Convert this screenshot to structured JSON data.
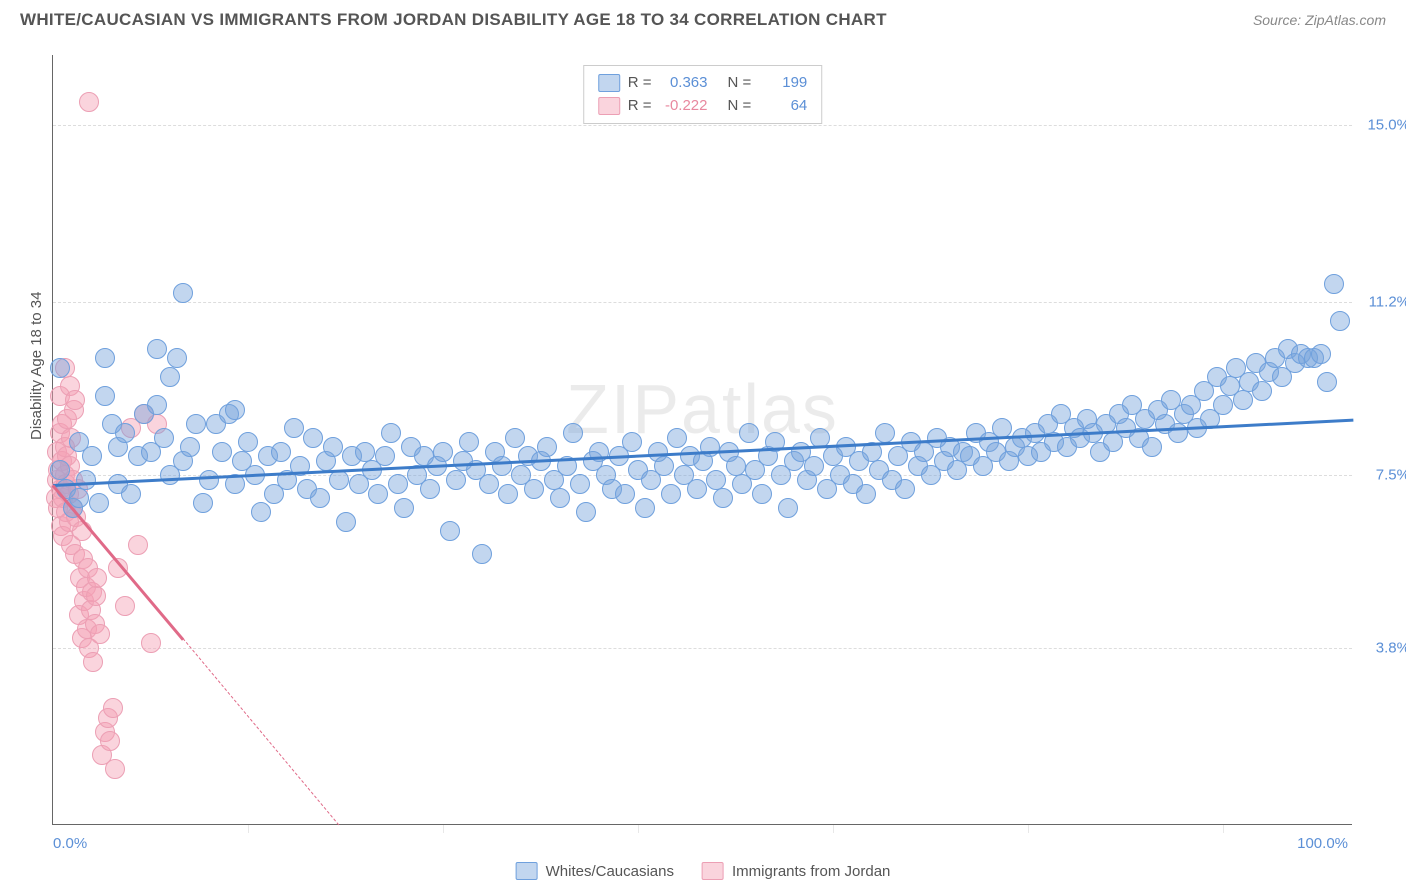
{
  "title": "WHITE/CAUCASIAN VS IMMIGRANTS FROM JORDAN DISABILITY AGE 18 TO 34 CORRELATION CHART",
  "source": "Source: ZipAtlas.com",
  "watermark": "ZIPatlas",
  "y_axis_title": "Disability Age 18 to 34",
  "chart": {
    "type": "scatter",
    "xlim": [
      0,
      100
    ],
    "ylim": [
      0,
      16.5
    ],
    "y_ticks": [
      {
        "v": 3.8,
        "label": "3.8%"
      },
      {
        "v": 7.5,
        "label": "7.5%"
      },
      {
        "v": 11.2,
        "label": "11.2%"
      },
      {
        "v": 15.0,
        "label": "15.0%"
      }
    ],
    "x_ticks_minor": [
      15,
      30,
      45,
      60,
      75,
      90
    ],
    "x_labels": [
      {
        "v": 0,
        "label": "0.0%",
        "align": "left"
      },
      {
        "v": 100,
        "label": "100.0%",
        "align": "right"
      }
    ],
    "background_color": "#ffffff",
    "grid_color": "#dddddd"
  },
  "series": {
    "blue": {
      "label": "Whites/Caucasians",
      "fill": "rgba(120,163,219,0.45)",
      "stroke": "#6fa0dd",
      "marker_r": 10,
      "trend_color": "#3d7cc9",
      "R": "0.363",
      "N": "199",
      "trend": {
        "x1": 0,
        "y1": 7.3,
        "x2": 100,
        "y2": 8.7
      },
      "points": [
        [
          0.5,
          7.6
        ],
        [
          0.5,
          9.8
        ],
        [
          1,
          7.2
        ],
        [
          1.5,
          6.8
        ],
        [
          2,
          7.0
        ],
        [
          2,
          8.2
        ],
        [
          2.5,
          7.4
        ],
        [
          3,
          7.9
        ],
        [
          3.5,
          6.9
        ],
        [
          4,
          9.2
        ],
        [
          4,
          10.0
        ],
        [
          4.5,
          8.6
        ],
        [
          5,
          7.3
        ],
        [
          5,
          8.1
        ],
        [
          5.5,
          8.4
        ],
        [
          6,
          7.1
        ],
        [
          6.5,
          7.9
        ],
        [
          7,
          8.8
        ],
        [
          7.5,
          8.0
        ],
        [
          8,
          9.0
        ],
        [
          8,
          10.2
        ],
        [
          8.5,
          8.3
        ],
        [
          9,
          9.6
        ],
        [
          9,
          7.5
        ],
        [
          9.5,
          10.0
        ],
        [
          10,
          7.8
        ],
        [
          10,
          11.4
        ],
        [
          10.5,
          8.1
        ],
        [
          11,
          8.6
        ],
        [
          11.5,
          6.9
        ],
        [
          12,
          7.4
        ],
        [
          12.5,
          8.6
        ],
        [
          13,
          8.0
        ],
        [
          13.5,
          8.8
        ],
        [
          14,
          7.3
        ],
        [
          14,
          8.9
        ],
        [
          14.5,
          7.8
        ],
        [
          15,
          8.2
        ],
        [
          15.5,
          7.5
        ],
        [
          16,
          6.7
        ],
        [
          16.5,
          7.9
        ],
        [
          17,
          7.1
        ],
        [
          17.5,
          8.0
        ],
        [
          18,
          7.4
        ],
        [
          18.5,
          8.5
        ],
        [
          19,
          7.7
        ],
        [
          19.5,
          7.2
        ],
        [
          20,
          8.3
        ],
        [
          20.5,
          7.0
        ],
        [
          21,
          7.8
        ],
        [
          21.5,
          8.1
        ],
        [
          22,
          7.4
        ],
        [
          22.5,
          6.5
        ],
        [
          23,
          7.9
        ],
        [
          23.5,
          7.3
        ],
        [
          24,
          8.0
        ],
        [
          24.5,
          7.6
        ],
        [
          25,
          7.1
        ],
        [
          25.5,
          7.9
        ],
        [
          26,
          8.4
        ],
        [
          26.5,
          7.3
        ],
        [
          27,
          6.8
        ],
        [
          27.5,
          8.1
        ],
        [
          28,
          7.5
        ],
        [
          28.5,
          7.9
        ],
        [
          29,
          7.2
        ],
        [
          29.5,
          7.7
        ],
        [
          30,
          8.0
        ],
        [
          30.5,
          6.3
        ],
        [
          31,
          7.4
        ],
        [
          31.5,
          7.8
        ],
        [
          32,
          8.2
        ],
        [
          32.5,
          7.6
        ],
        [
          33,
          5.8
        ],
        [
          33.5,
          7.3
        ],
        [
          34,
          8.0
        ],
        [
          34.5,
          7.7
        ],
        [
          35,
          7.1
        ],
        [
          35.5,
          8.3
        ],
        [
          36,
          7.5
        ],
        [
          36.5,
          7.9
        ],
        [
          37,
          7.2
        ],
        [
          37.5,
          7.8
        ],
        [
          38,
          8.1
        ],
        [
          38.5,
          7.4
        ],
        [
          39,
          7.0
        ],
        [
          39.5,
          7.7
        ],
        [
          40,
          8.4
        ],
        [
          40.5,
          7.3
        ],
        [
          41,
          6.7
        ],
        [
          41.5,
          7.8
        ],
        [
          42,
          8.0
        ],
        [
          42.5,
          7.5
        ],
        [
          43,
          7.2
        ],
        [
          43.5,
          7.9
        ],
        [
          44,
          7.1
        ],
        [
          44.5,
          8.2
        ],
        [
          45,
          7.6
        ],
        [
          45.5,
          6.8
        ],
        [
          46,
          7.4
        ],
        [
          46.5,
          8.0
        ],
        [
          47,
          7.7
        ],
        [
          47.5,
          7.1
        ],
        [
          48,
          8.3
        ],
        [
          48.5,
          7.5
        ],
        [
          49,
          7.9
        ],
        [
          49.5,
          7.2
        ],
        [
          50,
          7.8
        ],
        [
          50.5,
          8.1
        ],
        [
          51,
          7.4
        ],
        [
          51.5,
          7.0
        ],
        [
          52,
          8.0
        ],
        [
          52.5,
          7.7
        ],
        [
          53,
          7.3
        ],
        [
          53.5,
          8.4
        ],
        [
          54,
          7.6
        ],
        [
          54.5,
          7.1
        ],
        [
          55,
          7.9
        ],
        [
          55.5,
          8.2
        ],
        [
          56,
          7.5
        ],
        [
          56.5,
          6.8
        ],
        [
          57,
          7.8
        ],
        [
          57.5,
          8.0
        ],
        [
          58,
          7.4
        ],
        [
          58.5,
          7.7
        ],
        [
          59,
          8.3
        ],
        [
          59.5,
          7.2
        ],
        [
          60,
          7.9
        ],
        [
          60.5,
          7.5
        ],
        [
          61,
          8.1
        ],
        [
          61.5,
          7.3
        ],
        [
          62,
          7.8
        ],
        [
          62.5,
          7.1
        ],
        [
          63,
          8.0
        ],
        [
          63.5,
          7.6
        ],
        [
          64,
          8.4
        ],
        [
          64.5,
          7.4
        ],
        [
          65,
          7.9
        ],
        [
          65.5,
          7.2
        ],
        [
          66,
          8.2
        ],
        [
          66.5,
          7.7
        ],
        [
          67,
          8.0
        ],
        [
          67.5,
          7.5
        ],
        [
          68,
          8.3
        ],
        [
          68.5,
          7.8
        ],
        [
          69,
          8.1
        ],
        [
          69.5,
          7.6
        ],
        [
          70,
          8.0
        ],
        [
          70.5,
          7.9
        ],
        [
          71,
          8.4
        ],
        [
          71.5,
          7.7
        ],
        [
          72,
          8.2
        ],
        [
          72.5,
          8.0
        ],
        [
          73,
          8.5
        ],
        [
          73.5,
          7.8
        ],
        [
          74,
          8.1
        ],
        [
          74.5,
          8.3
        ],
        [
          75,
          7.9
        ],
        [
          75.5,
          8.4
        ],
        [
          76,
          8.0
        ],
        [
          76.5,
          8.6
        ],
        [
          77,
          8.2
        ],
        [
          77.5,
          8.8
        ],
        [
          78,
          8.1
        ],
        [
          78.5,
          8.5
        ],
        [
          79,
          8.3
        ],
        [
          79.5,
          8.7
        ],
        [
          80,
          8.4
        ],
        [
          80.5,
          8.0
        ],
        [
          81,
          8.6
        ],
        [
          81.5,
          8.2
        ],
        [
          82,
          8.8
        ],
        [
          82.5,
          8.5
        ],
        [
          83,
          9.0
        ],
        [
          83.5,
          8.3
        ],
        [
          84,
          8.7
        ],
        [
          84.5,
          8.1
        ],
        [
          85,
          8.9
        ],
        [
          85.5,
          8.6
        ],
        [
          86,
          9.1
        ],
        [
          86.5,
          8.4
        ],
        [
          87,
          8.8
        ],
        [
          87.5,
          9.0
        ],
        [
          88,
          8.5
        ],
        [
          88.5,
          9.3
        ],
        [
          89,
          8.7
        ],
        [
          89.5,
          9.6
        ],
        [
          90,
          9.0
        ],
        [
          90.5,
          9.4
        ],
        [
          91,
          9.8
        ],
        [
          91.5,
          9.1
        ],
        [
          92,
          9.5
        ],
        [
          92.5,
          9.9
        ],
        [
          93,
          9.3
        ],
        [
          93.5,
          9.7
        ],
        [
          94,
          10.0
        ],
        [
          94.5,
          9.6
        ],
        [
          95,
          10.2
        ],
        [
          95.5,
          9.9
        ],
        [
          96,
          10.1
        ],
        [
          96.5,
          10.0
        ],
        [
          97,
          10.0
        ],
        [
          97.5,
          10.1
        ],
        [
          98,
          9.5
        ],
        [
          98.5,
          11.6
        ],
        [
          99,
          10.8
        ]
      ]
    },
    "pink": {
      "label": "Immigrants from Jordan",
      "fill": "rgba(244,160,180,0.45)",
      "stroke": "#ec9fb4",
      "marker_r": 10,
      "trend_color": "#e06a88",
      "R": "-0.222",
      "N": "64",
      "trend_solid": {
        "x1": 0,
        "y1": 7.3,
        "x2": 10,
        "y2": 4.0
      },
      "trend_dashed": {
        "x1": 10,
        "y1": 4.0,
        "x2": 22,
        "y2": 0.0
      },
      "points": [
        [
          0.2,
          7.0
        ],
        [
          0.3,
          7.4
        ],
        [
          0.3,
          8.0
        ],
        [
          0.4,
          6.8
        ],
        [
          0.4,
          7.6
        ],
        [
          0.5,
          8.4
        ],
        [
          0.5,
          9.2
        ],
        [
          0.6,
          7.2
        ],
        [
          0.6,
          6.4
        ],
        [
          0.7,
          7.8
        ],
        [
          0.7,
          8.6
        ],
        [
          0.8,
          7.0
        ],
        [
          0.8,
          6.2
        ],
        [
          0.9,
          7.5
        ],
        [
          0.9,
          8.1
        ],
        [
          1.0,
          6.7
        ],
        [
          1.0,
          7.3
        ],
        [
          1.1,
          7.9
        ],
        [
          1.1,
          8.7
        ],
        [
          1.2,
          6.5
        ],
        [
          1.2,
          7.1
        ],
        [
          1.3,
          7.7
        ],
        [
          1.4,
          8.3
        ],
        [
          1.4,
          6.0
        ],
        [
          1.5,
          6.8
        ],
        [
          1.5,
          7.4
        ],
        [
          1.6,
          8.9
        ],
        [
          1.7,
          5.8
        ],
        [
          1.8,
          6.6
        ],
        [
          1.9,
          7.2
        ],
        [
          2.0,
          4.5
        ],
        [
          2.1,
          5.3
        ],
        [
          2.2,
          4.0
        ],
        [
          2.3,
          5.7
        ],
        [
          2.4,
          4.8
        ],
        [
          2.5,
          5.1
        ],
        [
          2.6,
          4.2
        ],
        [
          2.7,
          5.5
        ],
        [
          2.8,
          3.8
        ],
        [
          2.9,
          4.6
        ],
        [
          3.0,
          5.0
        ],
        [
          3.1,
          3.5
        ],
        [
          3.2,
          4.3
        ],
        [
          3.3,
          4.9
        ],
        [
          3.4,
          5.3
        ],
        [
          3.6,
          4.1
        ],
        [
          3.8,
          1.5
        ],
        [
          4.0,
          2.0
        ],
        [
          4.2,
          2.3
        ],
        [
          4.4,
          1.8
        ],
        [
          4.6,
          2.5
        ],
        [
          4.8,
          1.2
        ],
        [
          5.0,
          5.5
        ],
        [
          5.5,
          4.7
        ],
        [
          6.0,
          8.5
        ],
        [
          6.5,
          6.0
        ],
        [
          7.0,
          8.8
        ],
        [
          7.5,
          3.9
        ],
        [
          8.0,
          8.6
        ],
        [
          2.8,
          15.5
        ],
        [
          1.3,
          9.4
        ],
        [
          0.9,
          9.8
        ],
        [
          1.7,
          9.1
        ],
        [
          2.2,
          6.3
        ]
      ]
    }
  }
}
